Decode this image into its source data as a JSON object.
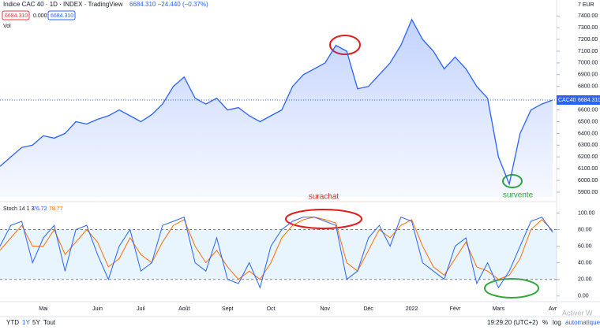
{
  "header": {
    "symbol": "Indice CAC 40 · 1D · INDEX · TradingView",
    "quote": "6684.310 −24.440 (−0.37%)",
    "box1": "6684.310",
    "mid": "0.000",
    "box2": "6684.310",
    "vol": "Vol",
    "currency": "7 EUR"
  },
  "stoch_legend": "Stoch 14 1 3",
  "price_tag": {
    "name": "CAC40",
    "value": "6684.310"
  },
  "annotations": {
    "overbought": "surachat",
    "oversold": "survente"
  },
  "footer": {
    "ranges": [
      "YTD",
      "1Y",
      "5Y",
      "Tout"
    ],
    "time": "19:29:20 (UTC+2)",
    "pct": "%",
    "log": "log",
    "auto": "automatique",
    "watermark": "Activer W"
  },
  "chart_data": [
    {
      "type": "area",
      "color": "#2962ff",
      "categories": [
        null,
        null,
        null,
        null,
        "Mai",
        null,
        null,
        null,
        null,
        "Juin",
        null,
        null,
        null,
        "Juil",
        null,
        null,
        null,
        "Août",
        null,
        null,
        null,
        "Sept",
        null,
        null,
        null,
        "Oct",
        null,
        null,
        null,
        null,
        "Nov",
        null,
        null,
        null,
        "Déc",
        null,
        null,
        null,
        "2022",
        null,
        null,
        null,
        "Févr",
        null,
        null,
        null,
        "Mars",
        null,
        null,
        null,
        null,
        "Avr"
      ],
      "values": [
        6120,
        6200,
        6280,
        6300,
        6380,
        6360,
        6400,
        6500,
        6480,
        6520,
        6550,
        6600,
        6550,
        6500,
        6560,
        6650,
        6800,
        6880,
        6700,
        6650,
        6700,
        6600,
        6620,
        6550,
        6500,
        6550,
        6600,
        6800,
        6900,
        6950,
        7000,
        7150,
        7100,
        6780,
        6800,
        6900,
        7000,
        7150,
        7370,
        7200,
        7100,
        6950,
        7050,
        6950,
        6800,
        6700,
        6200,
        5970,
        6400,
        6600,
        6650,
        6684.31
      ],
      "ylim": [
        5860,
        7435
      ],
      "yticks": [
        {
          "value": 5900,
          "label": "5900.00"
        },
        {
          "value": 6000,
          "label": "6000.00"
        },
        {
          "value": 6100,
          "label": "6100.00"
        },
        {
          "value": 6200,
          "label": "6200.00"
        },
        {
          "value": 6300,
          "label": "6300.00"
        },
        {
          "value": 6400,
          "label": "6400.00"
        },
        {
          "value": 6500,
          "label": "6500.00"
        },
        {
          "value": 6600,
          "label": "6600.00"
        },
        {
          "value": 6700,
          "label": "6700.00"
        },
        {
          "value": 6800,
          "label": "6800.00"
        },
        {
          "value": 6900,
          "label": "6900.00"
        },
        {
          "value": 7000,
          "label": "7000.00"
        },
        {
          "value": 7100,
          "label": "7100.00"
        },
        {
          "value": 7200,
          "label": "7200.00"
        },
        {
          "value": 7300,
          "label": "7300.00"
        },
        {
          "value": 7400,
          "label": "7400.00"
        }
      ]
    },
    {
      "type": "line",
      "series": [
        {
          "color": "#2962ff",
          "values": [
            60,
            85,
            90,
            40,
            70,
            85,
            30,
            80,
            85,
            50,
            20,
            60,
            80,
            30,
            40,
            85,
            90,
            95,
            40,
            30,
            70,
            20,
            15,
            40,
            10,
            60,
            80,
            90,
            95,
            95,
            90,
            85,
            20,
            30,
            70,
            85,
            60,
            95,
            90,
            40,
            30,
            20,
            60,
            70,
            15,
            40,
            10,
            30,
            60,
            90,
            95,
            76.72
          ]
        },
        {
          "color": "#ff6d00",
          "values": [
            55,
            70,
            85,
            60,
            60,
            80,
            50,
            65,
            80,
            65,
            35,
            45,
            70,
            50,
            40,
            65,
            85,
            92,
            60,
            40,
            55,
            35,
            20,
            30,
            20,
            40,
            70,
            85,
            92,
            95,
            92,
            88,
            40,
            30,
            55,
            80,
            70,
            85,
            92,
            60,
            35,
            25,
            45,
            65,
            35,
            30,
            20,
            25,
            45,
            80,
            92,
            78.77
          ]
        }
      ],
      "ylim": [
        -4,
        108
      ],
      "bands": [
        20,
        80
      ],
      "yticks": [
        {
          "value": 0,
          "label": "0.00"
        },
        {
          "value": 20,
          "label": "20.00"
        },
        {
          "value": 40,
          "label": "40.00"
        },
        {
          "value": 60,
          "label": "60.00"
        },
        {
          "value": 80,
          "label": "80.00"
        },
        {
          "value": 100,
          "label": "100.00"
        }
      ]
    }
  ]
}
